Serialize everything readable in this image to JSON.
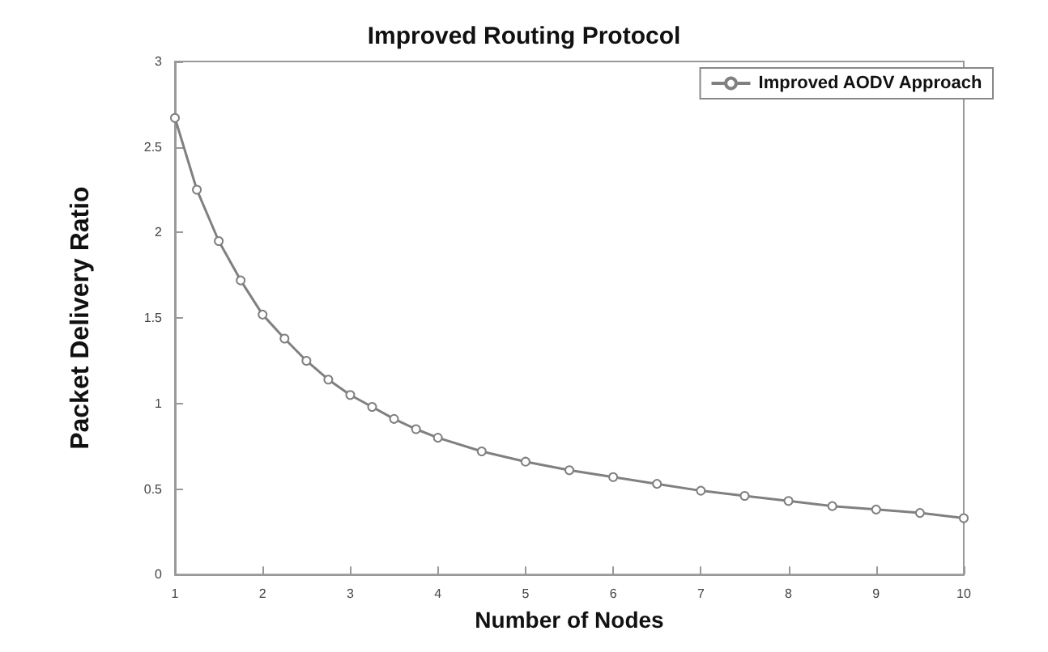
{
  "chart_data": {
    "type": "line",
    "title": "Improved Routing Protocol",
    "xlabel": "Number of Nodes",
    "ylabel": "Packet Delivery Ratio",
    "series": [
      {
        "name": "Improved AODV Approach",
        "color": "#808080",
        "x": [
          1,
          1.25,
          1.5,
          1.75,
          2,
          2.25,
          2.5,
          2.75,
          3,
          3.25,
          3.5,
          3.75,
          4,
          4.5,
          5,
          5.5,
          6,
          6.5,
          7,
          7.5,
          8,
          8.5,
          9,
          9.5,
          10
        ],
        "values": [
          2.67,
          2.25,
          1.95,
          1.72,
          1.52,
          1.38,
          1.25,
          1.14,
          1.05,
          0.98,
          0.91,
          0.85,
          0.8,
          0.72,
          0.66,
          0.61,
          0.57,
          0.53,
          0.49,
          0.46,
          0.43,
          0.4,
          0.38,
          0.36,
          0.33
        ]
      }
    ],
    "xlim": [
      1,
      10
    ],
    "xticks": [
      1,
      2,
      3,
      4,
      5,
      6,
      7,
      8,
      9,
      10
    ],
    "ylim": [
      0,
      3
    ],
    "yticks": [
      0,
      0.5,
      1,
      1.5,
      2,
      2.5,
      3
    ],
    "grid": false,
    "legend": "top right",
    "marker": "circle",
    "line_style": "solid"
  }
}
